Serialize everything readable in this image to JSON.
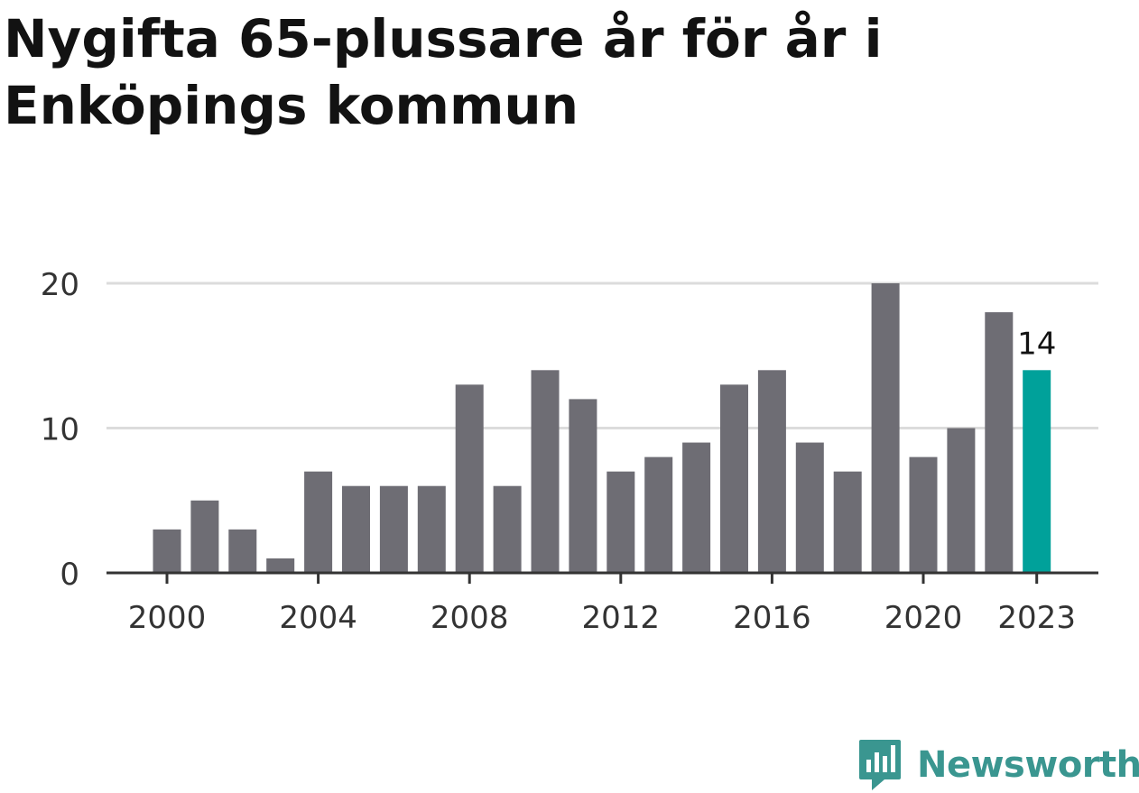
{
  "title": "Nygifta 65-plussare år för år i Enköpings kommun",
  "brand": {
    "name": "Newsworthy",
    "color": "#3a9690"
  },
  "colors": {
    "bar": "#6e6d74",
    "highlight": "#00a19a",
    "grid": "#dcdcdc",
    "axis": "#333333",
    "text": "#333333"
  },
  "chart_data": {
    "type": "bar",
    "x": [
      2000,
      2001,
      2002,
      2003,
      2004,
      2005,
      2006,
      2007,
      2008,
      2009,
      2010,
      2011,
      2012,
      2013,
      2014,
      2015,
      2016,
      2017,
      2018,
      2019,
      2020,
      2021,
      2022,
      2023
    ],
    "values": [
      3,
      5,
      3,
      1,
      7,
      6,
      6,
      6,
      13,
      6,
      14,
      12,
      7,
      8,
      9,
      13,
      14,
      9,
      7,
      20,
      8,
      10,
      18,
      14
    ],
    "xticks": [
      "2000",
      "2004",
      "2008",
      "2012",
      "2016",
      "2020",
      "2023"
    ],
    "yticks": [
      "0",
      "10",
      "20"
    ],
    "ylim": [
      0,
      20
    ],
    "highlight_index": 23,
    "highlight_label": "14",
    "grid": true
  }
}
